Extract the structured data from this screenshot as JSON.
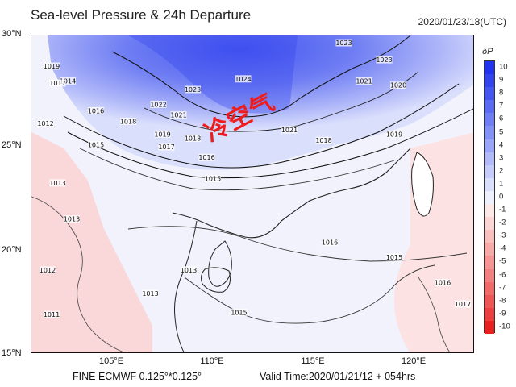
{
  "header": {
    "title": "Sea-level Pressure & 24h Departure",
    "timestamp": "2020/01/23/18(UTC)"
  },
  "footer": {
    "model_label": "FINE ECMWF 0.125°*0.125°",
    "valid_time": "Valid Time:2020/01/21/12 + 054hrs"
  },
  "annotation": {
    "text": "冷空气",
    "color": "#ee1c1c"
  },
  "axes": {
    "lat_labels": [
      "30°N",
      "25°N",
      "20°N",
      "15°N"
    ],
    "lon_labels": [
      "105°E",
      "110°E",
      "115°E",
      "120°E"
    ],
    "lat_range": [
      15,
      30
    ],
    "lon_range": [
      101,
      123
    ]
  },
  "legend": {
    "title": "δP",
    "ticks": [
      "10",
      "9",
      "8",
      "7",
      "6",
      "5",
      "4",
      "3",
      "2",
      "1",
      "0",
      "-1",
      "-2",
      "-3",
      "-4",
      "-5",
      "-6",
      "-7",
      "-8",
      "-9",
      "-10"
    ],
    "colors": [
      "#2233ee",
      "#3344ee",
      "#4455f0",
      "#5a6af2",
      "#6f7ef3",
      "#8592f5",
      "#9ba5f7",
      "#b1b9f9",
      "#c6ccfa",
      "#dadffc",
      "#eef0fe",
      "#fde8e8",
      "#fbd4d4",
      "#f9bfbf",
      "#f7aaaa",
      "#f59595",
      "#f38080",
      "#f16a6a",
      "#ee5555",
      "#ec3f3f",
      "#e82020"
    ]
  },
  "isobars": {
    "labels": [
      "1013",
      "1014",
      "1015",
      "1016",
      "1017",
      "1018",
      "1019",
      "1020",
      "1021",
      "1022",
      "1023",
      "1024"
    ],
    "map_labels": [
      {
        "text": "1023",
        "lon": 116.5,
        "lat": 29.6
      },
      {
        "text": "1023",
        "lon": 118.5,
        "lat": 28.8
      },
      {
        "text": "1024",
        "lon": 111.5,
        "lat": 27.9
      },
      {
        "text": "1023",
        "lon": 109.0,
        "lat": 27.4
      },
      {
        "text": "1022",
        "lon": 107.3,
        "lat": 26.7
      },
      {
        "text": "1021",
        "lon": 108.3,
        "lat": 26.2
      },
      {
        "text": "1021",
        "lon": 117.5,
        "lat": 27.8
      },
      {
        "text": "1020",
        "lon": 119.2,
        "lat": 27.6
      },
      {
        "text": "1019",
        "lon": 119.0,
        "lat": 25.3
      },
      {
        "text": "1016",
        "lon": 104.2,
        "lat": 26.4
      },
      {
        "text": "1018",
        "lon": 105.8,
        "lat": 25.9
      },
      {
        "text": "1019",
        "lon": 107.5,
        "lat": 25.3
      },
      {
        "text": "1018",
        "lon": 109.0,
        "lat": 25.1
      },
      {
        "text": "1017",
        "lon": 107.7,
        "lat": 24.7
      },
      {
        "text": "1016",
        "lon": 109.7,
        "lat": 24.2
      },
      {
        "text": "1015",
        "lon": 110.0,
        "lat": 23.2
      },
      {
        "text": "1021",
        "lon": 113.8,
        "lat": 25.5
      },
      {
        "text": "1018",
        "lon": 115.5,
        "lat": 25.0
      },
      {
        "text": "1015",
        "lon": 104.2,
        "lat": 24.8
      },
      {
        "text": "1012",
        "lon": 101.7,
        "lat": 25.8
      },
      {
        "text": "1014",
        "lon": 102.8,
        "lat": 27.8
      },
      {
        "text": "1013",
        "lon": 102.3,
        "lat": 23.0
      },
      {
        "text": "1013",
        "lon": 103.0,
        "lat": 21.3
      },
      {
        "text": "1013",
        "lon": 108.8,
        "lat": 18.9
      },
      {
        "text": "1012",
        "lon": 101.8,
        "lat": 18.9
      },
      {
        "text": "1011",
        "lon": 102.0,
        "lat": 16.8
      },
      {
        "text": "1013",
        "lon": 106.9,
        "lat": 17.8
      },
      {
        "text": "1015",
        "lon": 111.3,
        "lat": 16.9
      },
      {
        "text": "1016",
        "lon": 115.8,
        "lat": 20.2
      },
      {
        "text": "1015",
        "lon": 119.0,
        "lat": 19.5
      },
      {
        "text": "1016",
        "lon": 121.4,
        "lat": 18.3
      },
      {
        "text": "1017",
        "lon": 122.4,
        "lat": 17.3
      },
      {
        "text": "1019",
        "lon": 102.0,
        "lat": 28.5
      },
      {
        "text": "1017",
        "lon": 102.3,
        "lat": 27.7
      }
    ]
  }
}
